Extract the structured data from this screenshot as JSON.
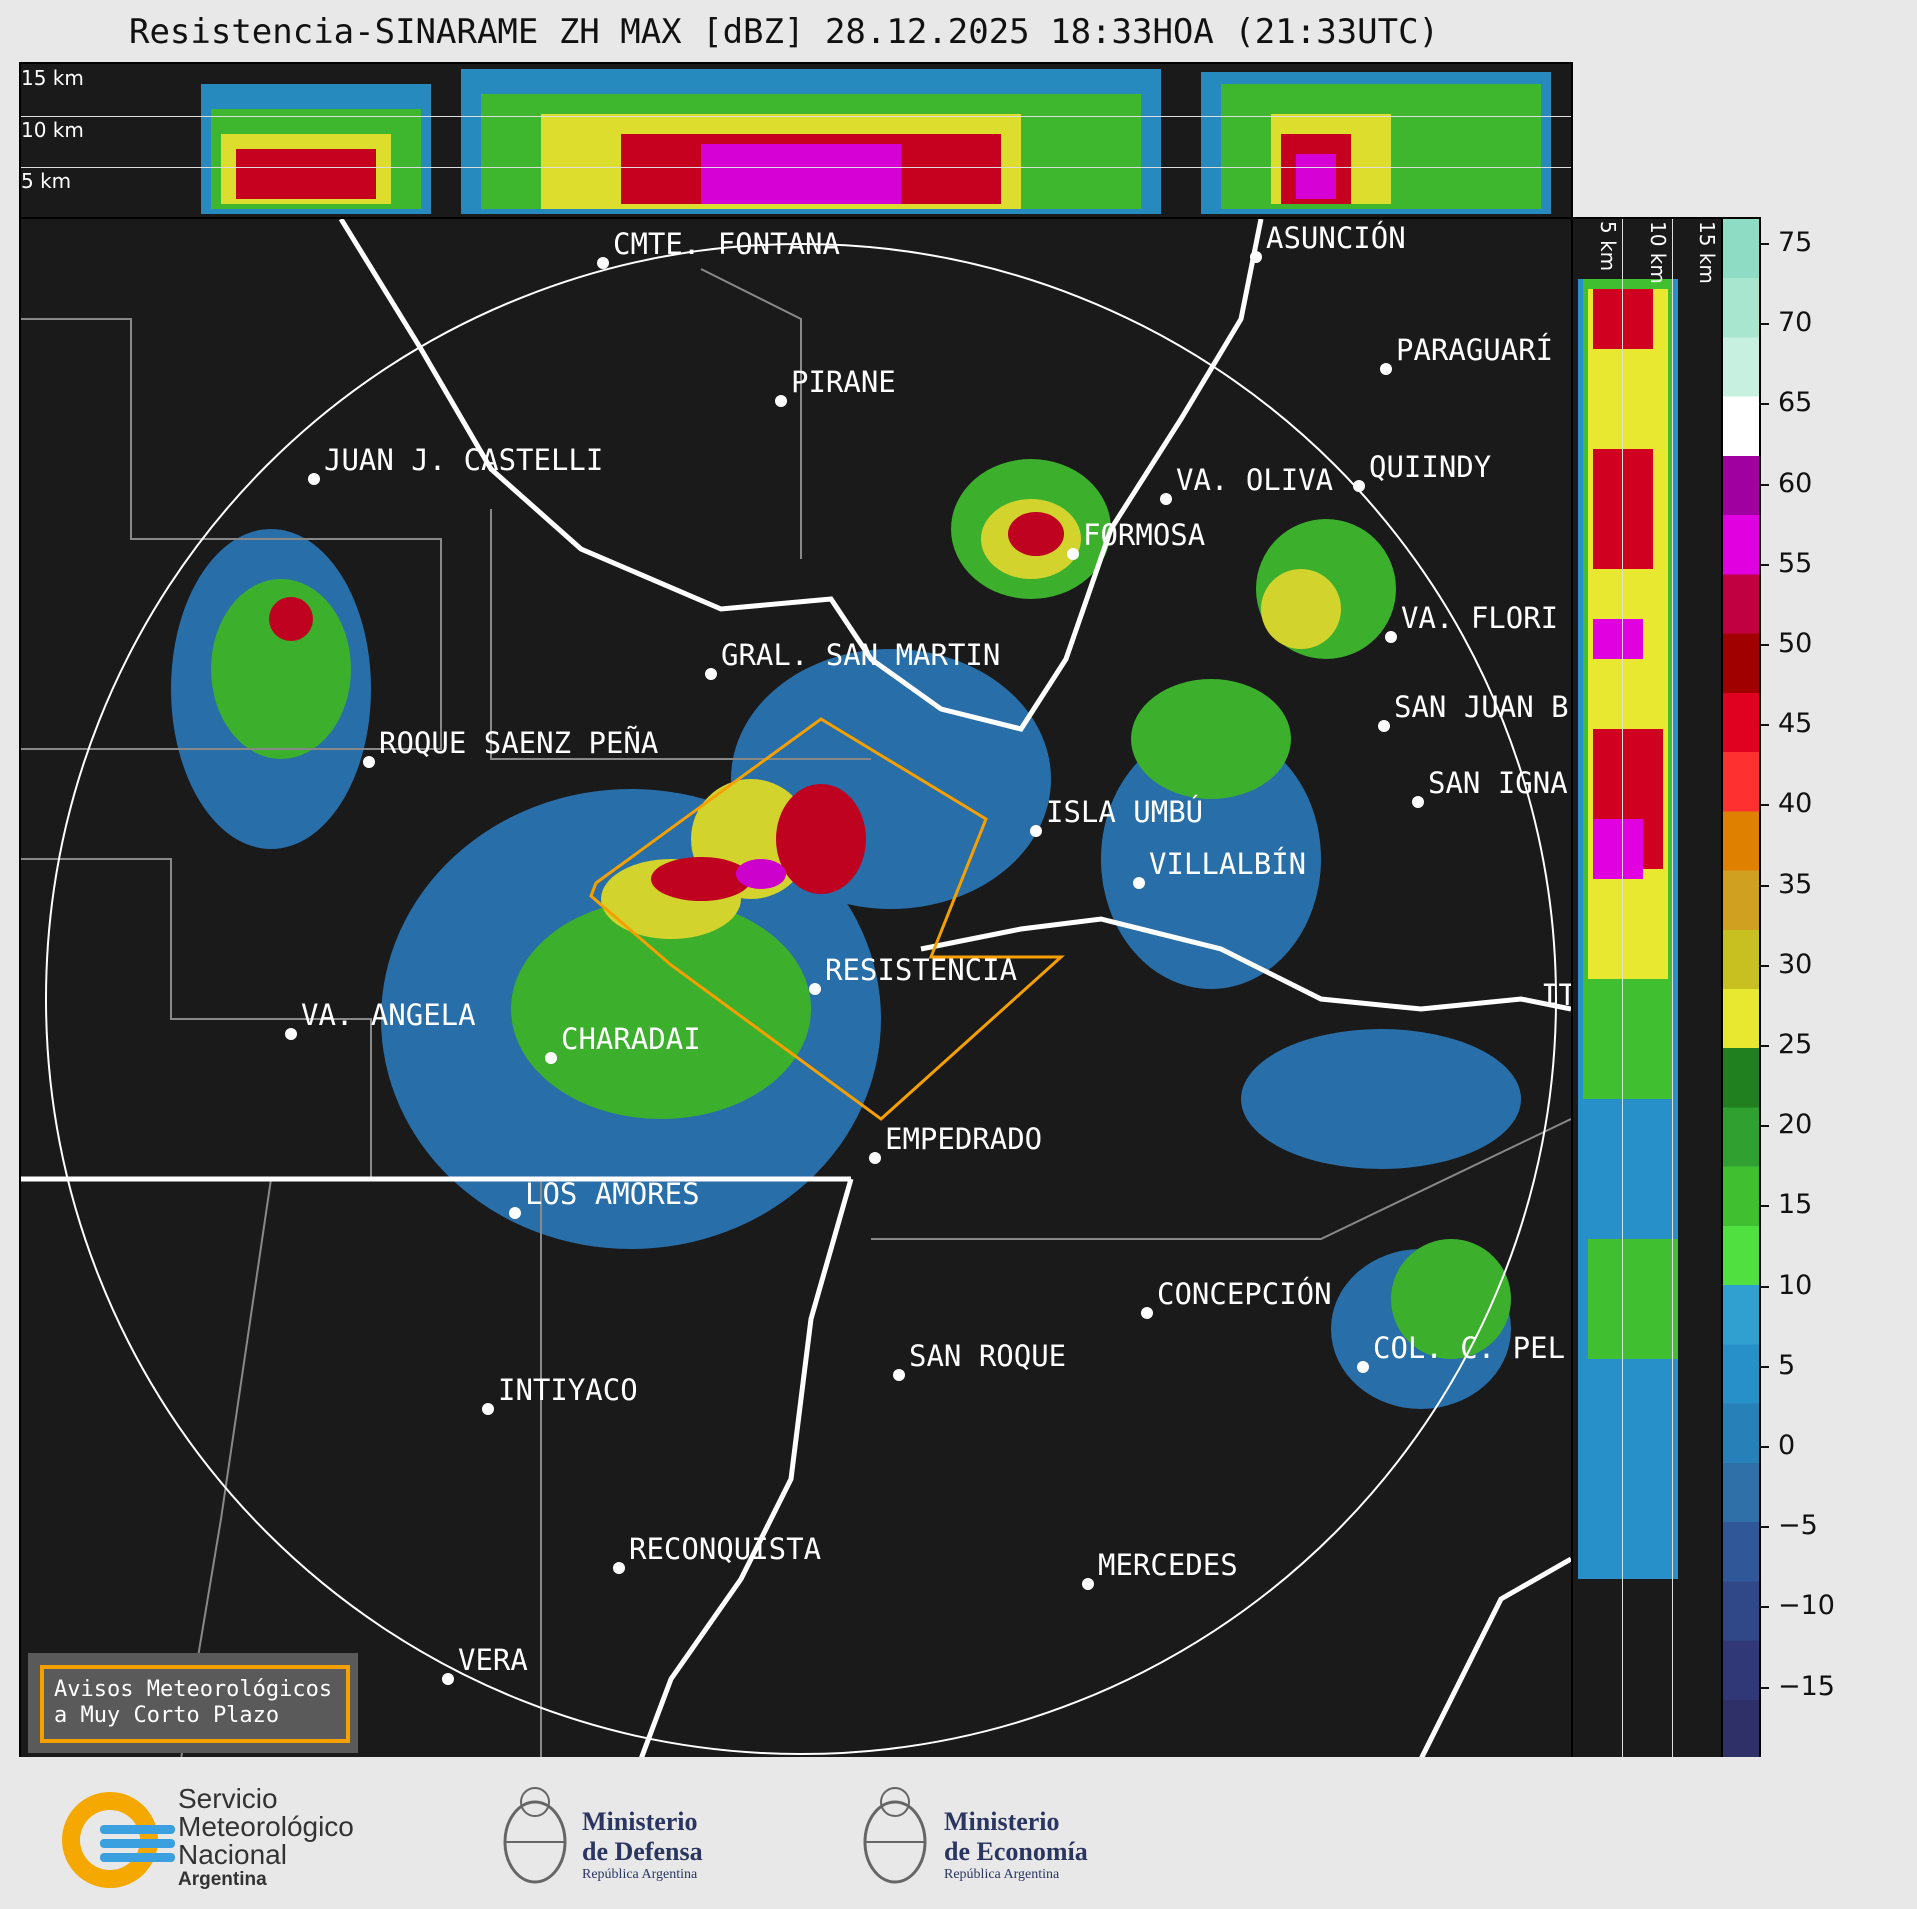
{
  "title": "Resistencia-SINARAME ZH MAX [dBZ] 28.12.2025 18:33HOA (21:33UTC)",
  "top_panel": {
    "altitudes": [
      "15 km",
      "10 km",
      "5 km"
    ]
  },
  "side_panel": {
    "altitudes": [
      "5 km",
      "10 km",
      "15 km"
    ]
  },
  "colorbar": {
    "unit": "dBZ",
    "ticks": [
      "75",
      "70",
      "65",
      "60",
      "55",
      "50",
      "45",
      "40",
      "35",
      "30",
      "25",
      "20",
      "15",
      "10",
      "5",
      "0",
      "−5",
      "−10",
      "−15"
    ],
    "colors": [
      "#8fdcc4",
      "#a8e6d0",
      "#c8f0e0",
      "#ffffff",
      "#a000a0",
      "#e000e0",
      "#c00040",
      "#a00000",
      "#e00020",
      "#ff3030",
      "#e08000",
      "#d0a020",
      "#c8c020",
      "#e8e830",
      "#208020",
      "#30a030",
      "#40c030",
      "#50e040",
      "#30a0d0",
      "#2890c8",
      "#2880b8",
      "#3070a8",
      "#305898",
      "#304888",
      "#303878",
      "#303068"
    ]
  },
  "cities": [
    {
      "name": "CMTE. FONTANA"
    },
    {
      "name": "ASUNCIÓN"
    },
    {
      "name": "PARAGUARÍ"
    },
    {
      "name": "PIRANE"
    },
    {
      "name": "JUAN J. CASTELLI"
    },
    {
      "name": "VA. OLIVA"
    },
    {
      "name": "QUIINDY"
    },
    {
      "name": "FORMOSA"
    },
    {
      "name": "VA. FLORI"
    },
    {
      "name": "GRAL. SAN MARTIN"
    },
    {
      "name": "SAN JUAN B"
    },
    {
      "name": "ROQUE SAENZ PEÑA"
    },
    {
      "name": "SAN IGNA"
    },
    {
      "name": "ISLA UMBÚ"
    },
    {
      "name": "VILLALBÍN"
    },
    {
      "name": "RESISTENCIA"
    },
    {
      "name": "IT"
    },
    {
      "name": "VA. ANGELA"
    },
    {
      "name": "CHARADAI"
    },
    {
      "name": "EMPEDRADO"
    },
    {
      "name": "LOS AMORES"
    },
    {
      "name": "CONCEPCIÓN"
    },
    {
      "name": "SAN ROQUE"
    },
    {
      "name": "COL. C. PEL"
    },
    {
      "name": "INTIYACO"
    },
    {
      "name": "RECONQUISTA"
    },
    {
      "name": "MERCEDES"
    },
    {
      "name": "VERA"
    }
  ],
  "aviso": {
    "line1": "Avisos Meteorológicos",
    "line2": "a Muy Corto Plazo"
  },
  "footer": {
    "smn": {
      "l1": "Servicio",
      "l2": "Meteorológico",
      "l3": "Nacional",
      "l4": "Argentina"
    },
    "defensa": {
      "l1": "Ministerio",
      "l2": "de Defensa",
      "l3": "República Argentina"
    },
    "economia": {
      "l1": "Ministerio",
      "l2": "de Economía",
      "l3": "República Argentina"
    }
  }
}
